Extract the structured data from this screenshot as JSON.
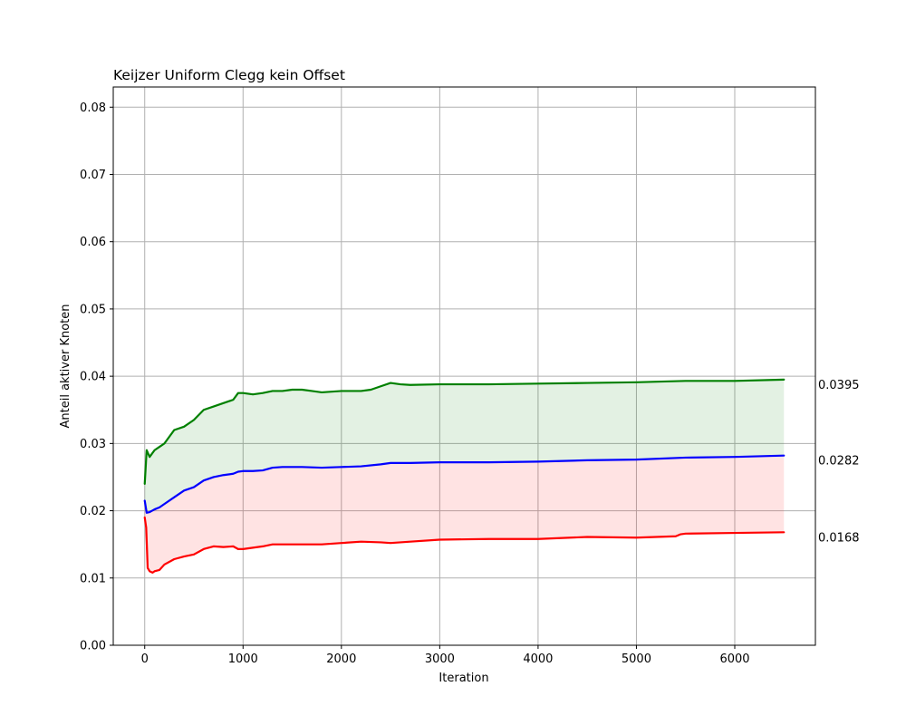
{
  "chart_data": {
    "type": "line",
    "title": "Keijzer Uniform Clegg kein Offset",
    "xlabel": "Iteration",
    "ylabel": "Anteil aktiver Knoten",
    "xlim": [
      -320,
      6820
    ],
    "ylim": [
      0.0,
      0.083
    ],
    "grid": true,
    "x_ticks": [
      0,
      1000,
      2000,
      3000,
      4000,
      5000,
      6000
    ],
    "x_tick_labels": [
      "0",
      "1000",
      "2000",
      "3000",
      "4000",
      "5000",
      "6000"
    ],
    "y_ticks": [
      0.0,
      0.01,
      0.02,
      0.03,
      0.04,
      0.05,
      0.06,
      0.07,
      0.08
    ],
    "y_tick_labels": [
      "0.00",
      "0.01",
      "0.02",
      "0.03",
      "0.04",
      "0.05",
      "0.06",
      "0.07",
      "0.08"
    ],
    "series": [
      {
        "color": "#008000",
        "end_label": "0.0395",
        "x": [
          0,
          20,
          50,
          100,
          150,
          200,
          300,
          400,
          500,
          600,
          700,
          800,
          900,
          950,
          1000,
          1100,
          1200,
          1300,
          1400,
          1500,
          1600,
          1700,
          1800,
          2000,
          2200,
          2300,
          2400,
          2500,
          2600,
          2700,
          3000,
          3500,
          4000,
          4500,
          5000,
          5500,
          6000,
          6500
        ],
        "y": [
          0.024,
          0.029,
          0.028,
          0.029,
          0.0295,
          0.03,
          0.032,
          0.0325,
          0.0335,
          0.035,
          0.0355,
          0.036,
          0.0365,
          0.0375,
          0.0375,
          0.0373,
          0.0375,
          0.0378,
          0.0378,
          0.038,
          0.038,
          0.0378,
          0.0376,
          0.0378,
          0.0378,
          0.038,
          0.0385,
          0.039,
          0.0388,
          0.0387,
          0.0388,
          0.0388,
          0.0389,
          0.039,
          0.0391,
          0.0393,
          0.0393,
          0.0395
        ]
      },
      {
        "color": "#0000ff",
        "end_label": "0.0282",
        "x": [
          0,
          20,
          50,
          100,
          150,
          200,
          300,
          400,
          500,
          600,
          700,
          800,
          900,
          950,
          1000,
          1100,
          1200,
          1300,
          1400,
          1600,
          1800,
          2000,
          2200,
          2400,
          2500,
          2700,
          3000,
          3500,
          4000,
          4500,
          5000,
          5500,
          6000,
          6500
        ],
        "y": [
          0.0215,
          0.0197,
          0.0198,
          0.0202,
          0.0205,
          0.021,
          0.022,
          0.023,
          0.0235,
          0.0245,
          0.025,
          0.0253,
          0.0255,
          0.0258,
          0.0259,
          0.0259,
          0.026,
          0.0264,
          0.0265,
          0.0265,
          0.0264,
          0.0265,
          0.0266,
          0.0269,
          0.0271,
          0.0271,
          0.0272,
          0.0272,
          0.0273,
          0.0275,
          0.0276,
          0.0279,
          0.028,
          0.0282
        ]
      },
      {
        "color": "#ff0000",
        "end_label": "0.0168",
        "x": [
          0,
          15,
          30,
          50,
          80,
          100,
          150,
          200,
          300,
          400,
          500,
          600,
          700,
          800,
          900,
          950,
          1000,
          1100,
          1200,
          1300,
          1500,
          1800,
          2000,
          2200,
          2400,
          2500,
          2700,
          3000,
          3500,
          4000,
          4500,
          5000,
          5400,
          5450,
          5500,
          6000,
          6500
        ],
        "y": [
          0.019,
          0.0175,
          0.0115,
          0.011,
          0.0108,
          0.011,
          0.0112,
          0.012,
          0.0128,
          0.0132,
          0.0135,
          0.0143,
          0.0147,
          0.0146,
          0.0147,
          0.0143,
          0.0143,
          0.0145,
          0.0147,
          0.015,
          0.015,
          0.015,
          0.0152,
          0.0154,
          0.0153,
          0.0152,
          0.0154,
          0.0157,
          0.0158,
          0.0158,
          0.0161,
          0.016,
          0.0162,
          0.0165,
          0.0166,
          0.0167,
          0.0168
        ]
      }
    ],
    "fills": [
      {
        "between": [
          0,
          1
        ],
        "color": "#008000",
        "opacity": 0.11
      },
      {
        "between": [
          1,
          2
        ],
        "color": "#ff0000",
        "opacity": 0.11
      }
    ]
  }
}
